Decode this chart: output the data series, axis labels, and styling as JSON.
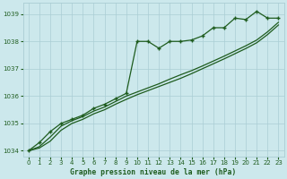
{
  "title": "Graphe pression niveau de la mer (hPa)",
  "bg_color": "#cce8ec",
  "grid_color": "#aacdd4",
  "line_color": "#1e5c1e",
  "x_values": [
    0,
    1,
    2,
    3,
    4,
    5,
    6,
    7,
    8,
    9,
    10,
    11,
    12,
    13,
    14,
    15,
    16,
    17,
    18,
    19,
    20,
    21,
    22,
    23
  ],
  "series_main": [
    1034.0,
    1034.3,
    1034.7,
    1035.0,
    1035.15,
    1035.3,
    1035.55,
    1035.7,
    1035.9,
    1036.1,
    1038.0,
    1038.0,
    1037.75,
    1038.0,
    1038.0,
    1038.05,
    1038.2,
    1038.5,
    1038.5,
    1038.85,
    1038.8,
    1039.1,
    1038.85,
    1038.85
  ],
  "series_line2": [
    1034.0,
    1034.15,
    1034.5,
    1034.9,
    1035.1,
    1035.25,
    1035.45,
    1035.6,
    1035.8,
    1036.0,
    1036.15,
    1036.3,
    1036.45,
    1036.62,
    1036.78,
    1036.93,
    1037.1,
    1037.28,
    1037.46,
    1037.65,
    1037.84,
    1038.05,
    1038.35,
    1038.7
  ],
  "series_line3": [
    1034.0,
    1034.1,
    1034.35,
    1034.75,
    1035.0,
    1035.15,
    1035.35,
    1035.5,
    1035.7,
    1035.88,
    1036.05,
    1036.2,
    1036.35,
    1036.5,
    1036.65,
    1036.82,
    1037.0,
    1037.18,
    1037.36,
    1037.55,
    1037.74,
    1037.95,
    1038.25,
    1038.6
  ],
  "ylim": [
    1033.8,
    1039.4
  ],
  "yticks": [
    1034,
    1035,
    1036,
    1037,
    1038,
    1039
  ],
  "xlim": [
    -0.5,
    23.5
  ],
  "xticks": [
    0,
    1,
    2,
    3,
    4,
    5,
    6,
    7,
    8,
    9,
    10,
    11,
    12,
    13,
    14,
    15,
    16,
    17,
    18,
    19,
    20,
    21,
    22,
    23
  ]
}
